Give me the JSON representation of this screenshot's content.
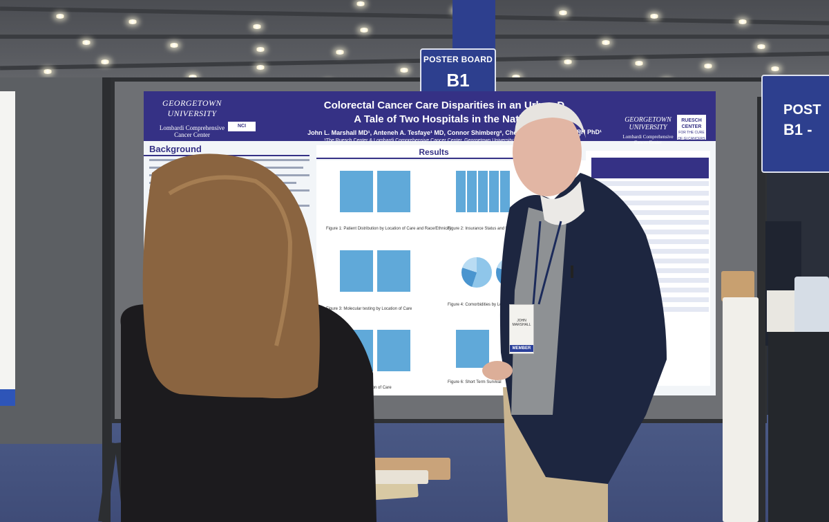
{
  "poster_board_sign": {
    "line1": "POSTER BOARD",
    "line2": "B1"
  },
  "poster_board_sign_right": {
    "line1": "POST",
    "line2": "B1 -"
  },
  "poster": {
    "header": {
      "left_logo_university": "GEORGETOWN UNIVERSITY",
      "left_logo_center": "Lombardi Comprehensive Cancer Center",
      "nci_badge": "NCI",
      "title_line1": "Colorectal Cancer Care Disparities in an Urban D",
      "title_line2": "A Tale of Two Hospitals in the Nation",
      "authors": "John L. Marshall MD¹, Anteneh A. Tesfaye¹ MD, Connor Shimberg², Chelsea Perelgut², Jialing",
      "authors_right": "BBS MPH PhD¹",
      "affiliation": "¹The Ruesch Center & Lombardi Comprehensive Cancer Center, Georgetown University, Washington, DC, 2000",
      "right_logo_university": "GEORGETOWN UNIVERSITY",
      "right_logo_center": "Lombardi Comprehensive Cancer Center",
      "ruesch_name": "RUESCH CENTER",
      "ruesch_sub": "FOR THE CURE OF GI CANCERS"
    },
    "background_heading": "Background",
    "results_heading": "Results",
    "figure_captions": [
      "Figure 1: Patient Distribution by Location of Care and Race/Ethnicity",
      "Figure 2: Insurance Status and Race/Ethnicity",
      "Figure 3: Molecular testing by Location of Care",
      "Figure 4: Comorbidities by Location",
      "Figure 5: Stage by Location of Care",
      "Figure 6: Short Term Survival"
    ]
  },
  "badge": {
    "name": "JOHN MARSHALL",
    "type": "MEMBER"
  },
  "colors": {
    "poster_header": "#353185",
    "sign_blue": "#2d3f8e",
    "carpet": "#4b5a86",
    "chart_bar": "#60a9d9"
  }
}
